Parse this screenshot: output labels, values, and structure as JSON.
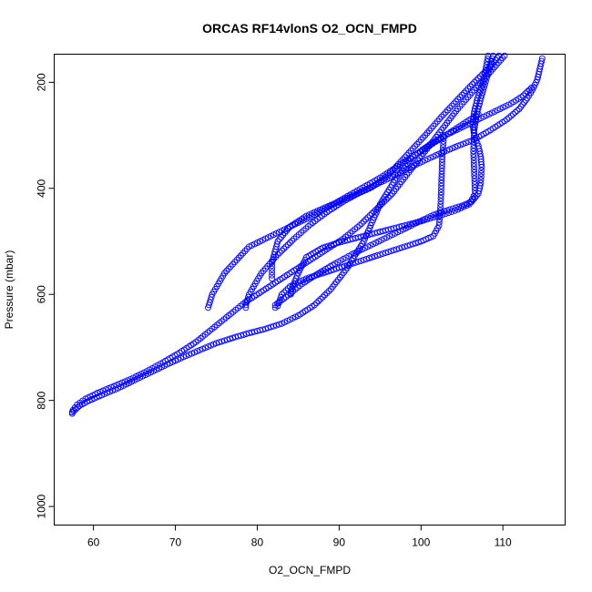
{
  "chart_data": {
    "type": "scatter",
    "title": "ORCAS RF14vlonS O2_OCN_FMPD",
    "xlabel": "O2_OCN_FMPD",
    "ylabel": "Pressure (mbar)",
    "xlim": [
      55.2,
      117.6
    ],
    "ylim": [
      1035,
      147
    ],
    "y_inverted": true,
    "x_ticks": [
      60,
      70,
      80,
      90,
      100,
      110
    ],
    "y_ticks": [
      200,
      400,
      600,
      800,
      1000
    ],
    "grid": false,
    "legend": "none",
    "marker": "open-circle",
    "point_color": "#0000ff",
    "series": [
      {
        "x": [
          114.8,
          114.5,
          114.2,
          113.6,
          113,
          112,
          110.5,
          108.5,
          106.5,
          104.5,
          102.5,
          100.5,
          98.5,
          96.5,
          94.5,
          92.5,
          90.5,
          88.5,
          86.5,
          84.5,
          82.5,
          80.5,
          79,
          78.6,
          78.6
        ],
        "y": [
          155,
          175,
          195,
          215,
          230,
          250,
          270,
          290,
          308,
          320,
          333,
          347,
          362,
          378,
          393,
          408,
          425,
          445,
          468,
          495,
          525,
          560,
          600,
          620,
          625
        ]
      },
      {
        "x": [
          108.2,
          107.6,
          106.9,
          106.5,
          106.3,
          106.5,
          107.0,
          107.3,
          107.4,
          107.3,
          107.0,
          106.2,
          105,
          103.5,
          101.5,
          99.5,
          97.5,
          95.5,
          93.5,
          91.5,
          89.5,
          87.5,
          85.5,
          83.5,
          82.2,
          82.2
        ],
        "y": [
          150,
          200,
          230,
          255,
          280,
          300,
          320,
          340,
          360,
          390,
          410,
          425,
          433,
          440,
          450,
          465,
          480,
          495,
          510,
          525,
          542,
          560,
          580,
          605,
          620,
          625
        ]
      },
      {
        "x": [
          108.8,
          107.5,
          106.8,
          106.5,
          106.4,
          106.5,
          106.6,
          105.9,
          104.5,
          103,
          101.5,
          100,
          98,
          96,
          94,
          92,
          90,
          88,
          86,
          85,
          84.2,
          84.1
        ],
        "y": [
          150,
          220,
          260,
          290,
          330,
          370,
          410,
          430,
          440,
          448,
          455,
          462,
          470,
          478,
          486,
          494,
          502,
          512,
          530,
          560,
          590,
          600
        ]
      },
      {
        "x": [
          109.5,
          108.5,
          106.5,
          104.5,
          102.5,
          100.5,
          99,
          97.5,
          96,
          94,
          92,
          90,
          88,
          86,
          84,
          82.5,
          81.8,
          81.8
        ],
        "y": [
          150,
          170,
          200,
          232,
          265,
          300,
          325,
          350,
          375,
          398,
          412,
          425,
          438,
          452,
          472,
          500,
          540,
          570
        ]
      },
      {
        "x": [
          102.8,
          102.6,
          102.5,
          102.4,
          102.2,
          101.5,
          100,
          98,
          96,
          94,
          92,
          90,
          88,
          86,
          84,
          83,
          82.5
        ],
        "y": [
          300,
          340,
          390,
          430,
          470,
          490,
          500,
          510,
          520,
          530,
          540,
          550,
          560,
          570,
          585,
          600,
          622
        ]
      },
      {
        "x": [
          107,
          103,
          99,
          95,
          91,
          87,
          83,
          79,
          76,
          74.5,
          74
        ],
        "y": [
          260,
          300,
          340,
          380,
          415,
          450,
          480,
          510,
          560,
          600,
          625
        ]
      },
      {
        "x": [
          110.2,
          108.5,
          106.5,
          104.5,
          102.5,
          100.5,
          98.5,
          96.5,
          94.5,
          92.5,
          90.5,
          88.5,
          86.5,
          84.5,
          82.5,
          80.5,
          78.5,
          76.5,
          74.5,
          72.5,
          70.5,
          68.5,
          66.5,
          64.5,
          62.5,
          60.5,
          59,
          58,
          57.5,
          57.4
        ],
        "y": [
          150,
          180,
          215,
          250,
          290,
          330,
          370,
          410,
          440,
          470,
          495,
          515,
          535,
          555,
          575,
          595,
          615,
          640,
          665,
          690,
          710,
          728,
          745,
          760,
          773,
          786,
          797,
          808,
          818,
          822
        ]
      },
      {
        "x": [
          113.5,
          112.5,
          111,
          109,
          107,
          105,
          103,
          101,
          99,
          97,
          95,
          93,
          91,
          89,
          87,
          85,
          83,
          81,
          79,
          77,
          75,
          73,
          71,
          69,
          67,
          65,
          63,
          61,
          59.5,
          58.3,
          57.6,
          57.4
        ],
        "y": [
          210,
          225,
          240,
          255,
          270,
          285,
          300,
          318,
          340,
          380,
          430,
          500,
          550,
          590,
          620,
          640,
          655,
          665,
          673,
          682,
          692,
          705,
          718,
          732,
          747,
          762,
          777,
          790,
          800,
          810,
          820,
          825
        ]
      }
    ]
  }
}
